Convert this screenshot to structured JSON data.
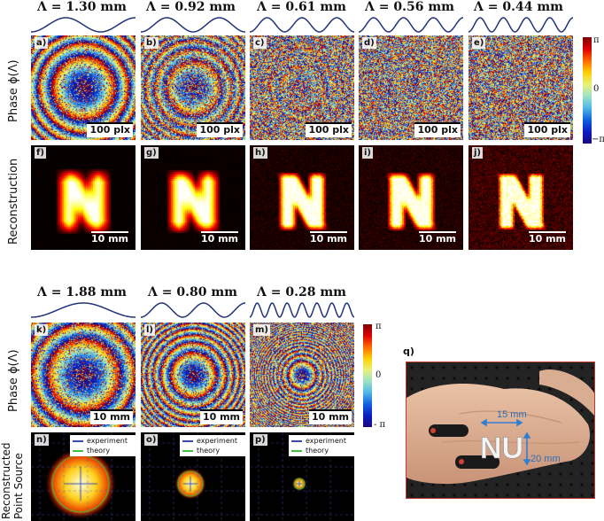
{
  "top": {
    "titles": [
      "Λ = 1.30 mm",
      "Λ = 0.92 mm",
      "Λ = 0.61 mm",
      "Λ = 0.56 mm",
      "Λ = 0.44 mm"
    ],
    "phase_labels": [
      "a)",
      "b)",
      "c)",
      "d)",
      "e)"
    ],
    "recon_labels": [
      "f)",
      "g)",
      "h)",
      "i)",
      "j)"
    ],
    "phase_scale": "100 plx",
    "recon_scale": "10 mm",
    "row1_label": "Phase ϕ(Λ)",
    "row2_label": "Reconstruction"
  },
  "bottom": {
    "titles": [
      "Λ = 1.88 mm",
      "Λ = 0.80 mm",
      "Λ = 0.28 mm"
    ],
    "phase_labels": [
      "k)",
      "l)",
      "m)"
    ],
    "source_labels": [
      "n)",
      "o)",
      "p)"
    ],
    "phase_scale": "10 mm",
    "row1_label": "Phase ϕ(Λ)",
    "row2_label_a": "Reconstructed",
    "row2_label_b": "Point Source",
    "legend": {
      "experiment": "experiment",
      "theory": "theory"
    }
  },
  "colorbar": {
    "top": "π",
    "mid": "0",
    "bottom": "−π"
  },
  "colorbar2": {
    "top": "π",
    "mid": "0",
    "bottom": "- π"
  },
  "photo": {
    "label": "q)",
    "logo": "NU",
    "dim_h": "15 mm",
    "dim_v": "20 mm"
  },
  "colors": {
    "wave": "#22337a",
    "experiment": "#3a4aa8",
    "theory": "#3ec23e",
    "dim_arrow": "#2f7fd0",
    "photo_border": "#c0392b"
  }
}
